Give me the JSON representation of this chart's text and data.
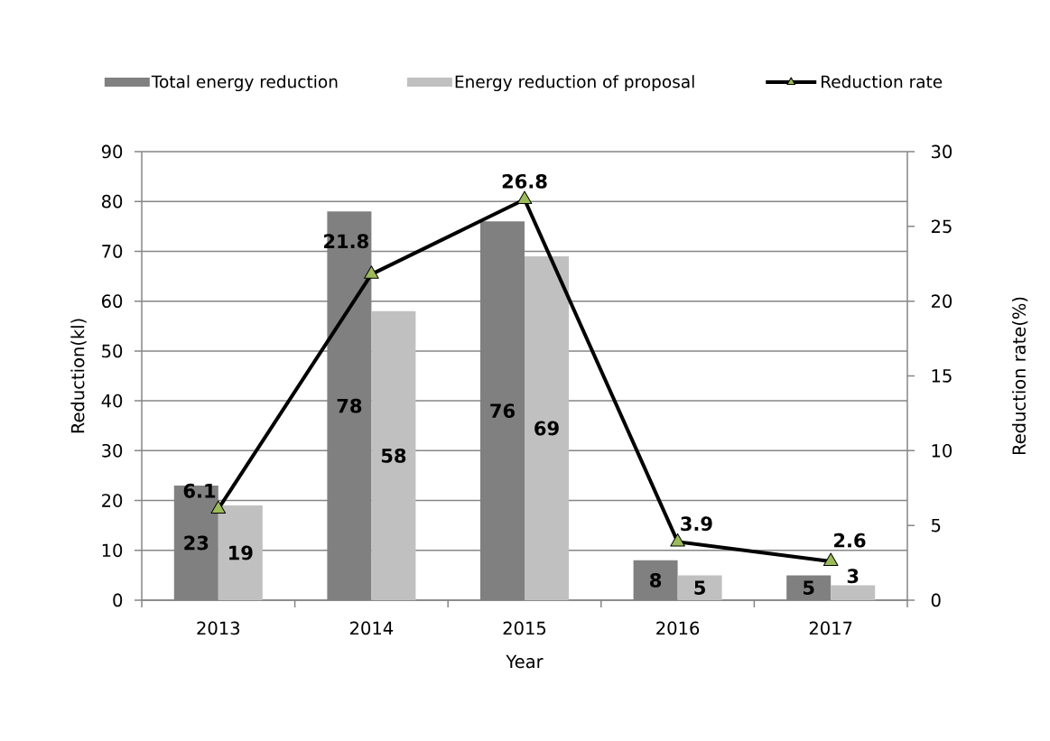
{
  "chart_data": {
    "type": "bar",
    "legend": "top",
    "xlabel": "Year",
    "ylabel": "Reduction(kl)",
    "y2label": "Reduction rate(%)",
    "categories": [
      "2013",
      "2014",
      "2015",
      "2016",
      "2017"
    ],
    "series": [
      {
        "name": "Total energy reduction",
        "color": "#808080",
        "values": [
          23,
          78,
          76,
          8,
          5
        ]
      },
      {
        "name": "Energy reduction of proposal",
        "color": "#c0c0c0",
        "values": [
          19,
          58,
          69,
          5,
          3
        ]
      },
      {
        "name": "Reduction rate",
        "type": "line",
        "axis": "y2",
        "color": "#000000",
        "marker": "triangle",
        "values": [
          6.1,
          21.8,
          26.8,
          3.9,
          2.6
        ]
      }
    ],
    "ylim": [
      0,
      90
    ],
    "yticks": [
      0,
      10,
      20,
      30,
      40,
      50,
      60,
      70,
      80,
      90
    ],
    "y2lim": [
      0,
      30
    ],
    "y2ticks": [
      0,
      5,
      10,
      15,
      20,
      25,
      30
    ],
    "grid": "y",
    "data_labels": true
  }
}
